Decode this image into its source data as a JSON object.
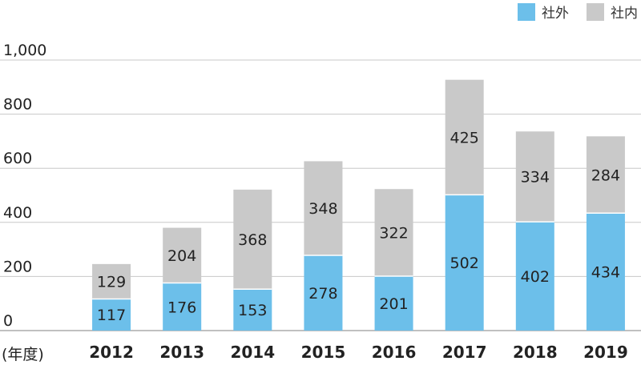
{
  "colors": {
    "external": "#6cbfea",
    "internal": "#c9c9c9",
    "grid": "#c8c8c8",
    "axis": "#9a9a9a",
    "text": "#222222"
  },
  "legend": [
    {
      "label": "社外",
      "color": "#6cbfea"
    },
    {
      "label": "社内",
      "color": "#c9c9c9"
    }
  ],
  "x_unit_label": "(年度)",
  "chart_data": {
    "type": "bar",
    "stacked": true,
    "categories": [
      "2012",
      "2013",
      "2014",
      "2015",
      "2016",
      "2017",
      "2018",
      "2019"
    ],
    "series": [
      {
        "name": "社外",
        "values": [
          117,
          176,
          153,
          278,
          201,
          502,
          402,
          434
        ]
      },
      {
        "name": "社内",
        "values": [
          129,
          204,
          368,
          348,
          322,
          425,
          334,
          284
        ]
      }
    ],
    "y_ticks": [
      "0",
      "200",
      "400",
      "600",
      "800",
      "1,000"
    ],
    "ylim": [
      0,
      1000
    ],
    "grid": true,
    "legend_position": "top-right"
  }
}
